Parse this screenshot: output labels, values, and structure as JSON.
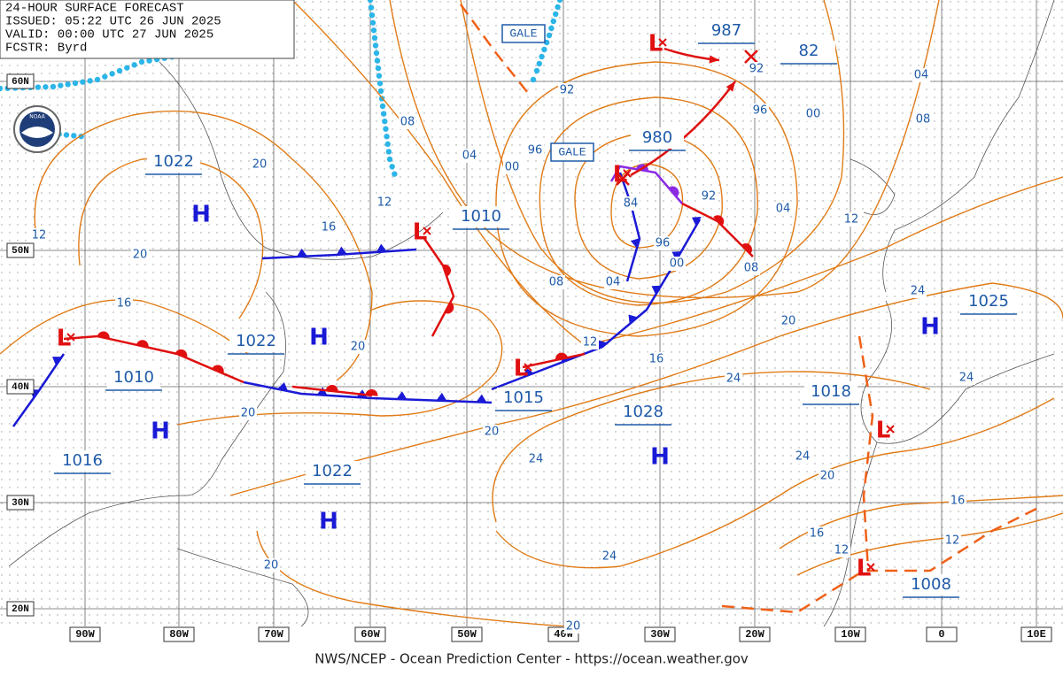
{
  "header": {
    "lines": [
      "24-HOUR SURFACE FORECAST",
      "ISSUED: 05:22 UTC 26 JUN 2025",
      "VALID:  00:00 UTC 27 JUN 2025",
      "FCSTR:  Byrd"
    ]
  },
  "logo": "NOAA",
  "latitude_labels": [
    "60N",
    "50N",
    "40N",
    "30N",
    "20N"
  ],
  "longitude_labels": [
    "90W",
    "80W",
    "70W",
    "60W",
    "50W",
    "40W",
    "30W",
    "20W",
    "10W",
    "0",
    "10E"
  ],
  "pressure_labels": [
    "1022",
    "1010",
    "1022",
    "1010",
    "1015",
    "1028",
    "1016",
    "1022",
    "980",
    "987",
    "82",
    "1025",
    "1018",
    "1008"
  ],
  "highs": [
    "H",
    "H",
    "H",
    "H",
    "H",
    "H"
  ],
  "lows": [
    "L",
    "L",
    "L",
    "L",
    "L",
    "L",
    "L"
  ],
  "gale_labels": [
    "GALE",
    "GALE"
  ],
  "isobar_labels": [
    "08",
    "04",
    "00",
    "96",
    "92",
    "12",
    "16",
    "20",
    "20",
    "12",
    "16",
    "20",
    "20",
    "08",
    "04",
    "00",
    "96",
    "84",
    "92",
    "96",
    "92",
    "00",
    "04",
    "08",
    "12",
    "04",
    "08",
    "12",
    "16",
    "20",
    "24",
    "24",
    "24",
    "20",
    "24",
    "24",
    "20",
    "24",
    "20",
    "16",
    "16",
    "12",
    "12",
    "20"
  ],
  "footer": "NWS/NCEP - Ocean Prediction Center - https://ocean.weather.gov"
}
